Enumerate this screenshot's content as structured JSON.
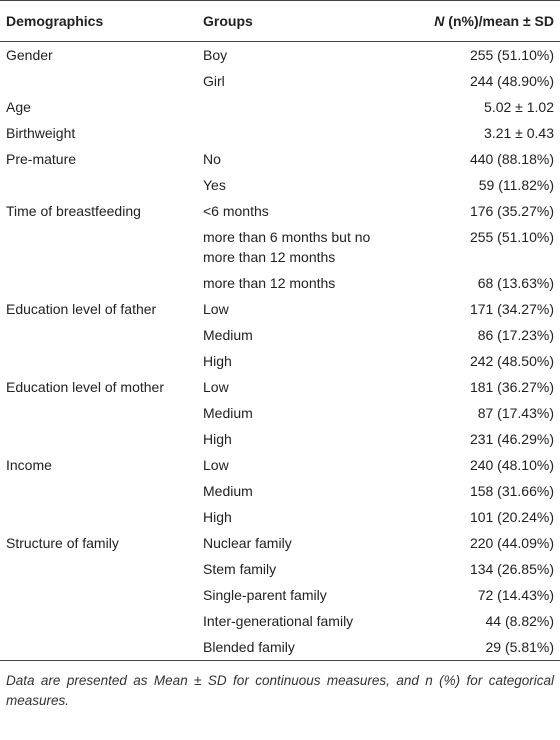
{
  "table": {
    "header": {
      "demographics": "Demographics",
      "groups": "Groups",
      "value_italic": "N",
      "value_rest": " (n%)/mean ± SD"
    },
    "rows": [
      {
        "demographics": "Gender",
        "group": "Boy",
        "value": "255 (51.10%)"
      },
      {
        "group": "Girl",
        "value": "244 (48.90%)"
      },
      {
        "demographics": "Age",
        "value": "5.02 ± 1.02"
      },
      {
        "demographics": "Birthweight",
        "value": "3.21 ± 0.43"
      },
      {
        "demographics": "Pre-mature",
        "group": "No",
        "value": "440 (88.18%)"
      },
      {
        "group": "Yes",
        "value": "59 (11.82%)"
      },
      {
        "demographics": "Time of breastfeeding",
        "group": "<6 months",
        "value": "176 (35.27%)"
      },
      {
        "group": "more than 6 months but no more than 12 months",
        "value": "255 (51.10%)"
      },
      {
        "group": "more than 12 months",
        "value": "68 (13.63%)"
      },
      {
        "demographics": "Education level of father",
        "group": "Low",
        "value": "171 (34.27%)"
      },
      {
        "group": "Medium",
        "value": "86 (17.23%)"
      },
      {
        "group": "High",
        "value": "242 (48.50%)"
      },
      {
        "demographics": "Education level of mother",
        "group": "Low",
        "value": "181 (36.27%)"
      },
      {
        "group": "Medium",
        "value": "87 (17.43%)"
      },
      {
        "group": "High",
        "value": "231 (46.29%)"
      },
      {
        "demographics": "Income",
        "group": "Low",
        "value": "240 (48.10%)"
      },
      {
        "group": "Medium",
        "value": "158 (31.66%)"
      },
      {
        "group": "High",
        "value": "101 (20.24%)"
      },
      {
        "demographics": "Structure of family",
        "group": "Nuclear family",
        "value": "220 (44.09%)"
      },
      {
        "group": "Stem family",
        "value": "134 (26.85%)"
      },
      {
        "group": "Single-parent family",
        "value": "72 (14.43%)"
      },
      {
        "group": "Inter-generational family",
        "value": "44 (8.82%)"
      },
      {
        "group": "Blended family",
        "value": "29 (5.81%)"
      }
    ],
    "footnote": "Data are presented as Mean ± SD for continuous measures, and n (%) for categorical measures."
  }
}
